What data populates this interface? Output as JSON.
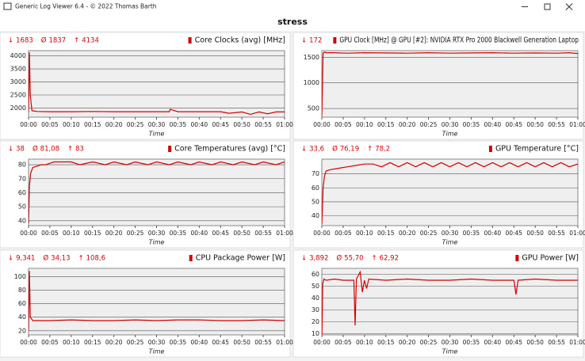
{
  "window_title": "Generic Log Viewer 6.4 - © 2022 Thomas Barth",
  "page_title": "stress",
  "stat_symbols": [
    "↓",
    "Ø",
    "↑"
  ],
  "chart_data": [
    {
      "type": "line",
      "title": "Core Clocks (avg) [MHz]",
      "x_label": "Time",
      "color": "#d40000",
      "stats": [
        1683,
        1837,
        4134
      ],
      "xlim": [
        0,
        60
      ],
      "xticks": [
        {
          "value": 0,
          "label": "00:00"
        },
        {
          "value": 5,
          "label": "00:05"
        },
        {
          "value": 10,
          "label": "00:10"
        },
        {
          "value": 15,
          "label": "00:15"
        },
        {
          "value": 20,
          "label": "00:20"
        },
        {
          "value": 25,
          "label": "00:25"
        },
        {
          "value": 30,
          "label": "00:30"
        },
        {
          "value": 35,
          "label": "00:35"
        },
        {
          "value": 40,
          "label": "00:40"
        },
        {
          "value": 45,
          "label": "00:45"
        },
        {
          "value": 50,
          "label": "00:50"
        },
        {
          "value": 55,
          "label": "00:55"
        },
        {
          "value": 60,
          "label": "01:00"
        }
      ],
      "ylim": [
        1650,
        4200
      ],
      "yticks": [
        2000,
        2500,
        3000,
        3500,
        4000
      ],
      "x": [
        0,
        0.2,
        0.4,
        0.8,
        2,
        5,
        10,
        15,
        20,
        25,
        30,
        33,
        33.2,
        35,
        40,
        45,
        47,
        50,
        52,
        54,
        56,
        58,
        60
      ],
      "values": [
        1837,
        4134,
        2500,
        1900,
        1870,
        1860,
        1860,
        1870,
        1860,
        1860,
        1860,
        1860,
        1950,
        1860,
        1860,
        1860,
        1800,
        1850,
        1760,
        1850,
        1780,
        1850,
        1850
      ]
    },
    {
      "type": "line",
      "title": "GPU Clock [MHz] @ GPU [#2]: NVIDIA RTX Pro 2000 Blackwell Generation Laptop",
      "x_label": "Time",
      "color": "#d40000",
      "stats": [
        172
      ],
      "xlim": [
        0,
        60
      ],
      "xticks": [
        {
          "value": 0,
          "label": "00:00"
        },
        {
          "value": 5,
          "label": "00:05"
        },
        {
          "value": 10,
          "label": "00:10"
        },
        {
          "value": 15,
          "label": "00:15"
        },
        {
          "value": 20,
          "label": "00:20"
        },
        {
          "value": 25,
          "label": "00:25"
        },
        {
          "value": 30,
          "label": "00:30"
        },
        {
          "value": 35,
          "label": "00:35"
        },
        {
          "value": 40,
          "label": "00:40"
        },
        {
          "value": 45,
          "label": "00:45"
        },
        {
          "value": 50,
          "label": "00:50"
        },
        {
          "value": 55,
          "label": "00:55"
        },
        {
          "value": 60,
          "label": "01:00"
        }
      ],
      "ylim": [
        330,
        1630
      ],
      "yticks": [
        500,
        1000,
        1500
      ],
      "x": [
        0,
        0.3,
        0.6,
        1,
        3,
        6,
        10,
        15,
        20,
        25,
        30,
        35,
        40,
        45,
        50,
        55,
        58,
        60
      ],
      "values": [
        350,
        1580,
        1600,
        1590,
        1590,
        1580,
        1590,
        1585,
        1580,
        1590,
        1580,
        1585,
        1590,
        1580,
        1585,
        1580,
        1590,
        1575
      ]
    },
    {
      "type": "line",
      "title": "Core Temperatures (avg) [°C]",
      "x_label": "Time",
      "color": "#d40000",
      "stats": [
        38,
        {
          "value": 81.08,
          "label": "81,08"
        },
        83
      ],
      "xlim": [
        0,
        60
      ],
      "xticks": [
        {
          "value": 0,
          "label": "00:00"
        },
        {
          "value": 5,
          "label": "00:05"
        },
        {
          "value": 10,
          "label": "00:10"
        },
        {
          "value": 15,
          "label": "00:15"
        },
        {
          "value": 20,
          "label": "00:20"
        },
        {
          "value": 25,
          "label": "00:25"
        },
        {
          "value": 30,
          "label": "00:30"
        },
        {
          "value": 35,
          "label": "00:35"
        },
        {
          "value": 40,
          "label": "00:40"
        },
        {
          "value": 45,
          "label": "00:45"
        },
        {
          "value": 50,
          "label": "00:50"
        },
        {
          "value": 55,
          "label": "00:55"
        },
        {
          "value": 60,
          "label": "01:00"
        }
      ],
      "ylim": [
        36.5,
        84
      ],
      "yticks": [
        40,
        50,
        60,
        70,
        80
      ],
      "x": [
        0,
        0.2,
        0.5,
        1,
        2,
        3,
        4,
        5,
        6,
        8,
        10,
        12,
        15,
        18,
        20,
        23,
        25,
        28,
        30,
        33,
        35,
        38,
        40,
        43,
        45,
        48,
        50,
        53,
        55,
        58,
        60
      ],
      "values": [
        38,
        65,
        74,
        78,
        79,
        80,
        80,
        81,
        82,
        82,
        82,
        80,
        82,
        80,
        82,
        80,
        82,
        80,
        82,
        80,
        82,
        80,
        82,
        80,
        82,
        80,
        82,
        80,
        82,
        80,
        82
      ]
    },
    {
      "type": "line",
      "title": "GPU Temperature [°C]",
      "x_label": "Time",
      "color": "#d40000",
      "stats": [
        {
          "value": 33.6,
          "label": "33,6"
        },
        {
          "value": 76.19,
          "label": "76,19"
        },
        {
          "value": 78.2,
          "label": "78,2"
        }
      ],
      "xlim": [
        0,
        60
      ],
      "xticks": [
        {
          "value": 0,
          "label": "00:00"
        },
        {
          "value": 5,
          "label": "00:05"
        },
        {
          "value": 10,
          "label": "00:10"
        },
        {
          "value": 15,
          "label": "00:15"
        },
        {
          "value": 20,
          "label": "00:20"
        },
        {
          "value": 25,
          "label": "00:25"
        },
        {
          "value": 30,
          "label": "00:30"
        },
        {
          "value": 35,
          "label": "00:35"
        },
        {
          "value": 40,
          "label": "00:40"
        },
        {
          "value": 45,
          "label": "00:45"
        },
        {
          "value": 50,
          "label": "00:50"
        },
        {
          "value": 55,
          "label": "00:55"
        },
        {
          "value": 60,
          "label": "01:00"
        }
      ],
      "ylim": [
        33,
        80.5
      ],
      "yticks": [
        40,
        50,
        60,
        70
      ],
      "x": [
        0,
        0.3,
        0.6,
        1,
        2,
        4,
        6,
        8,
        10,
        12,
        14,
        16,
        18,
        20,
        22,
        24,
        26,
        28,
        30,
        32,
        34,
        36,
        38,
        40,
        42,
        44,
        46,
        48,
        50,
        52,
        54,
        56,
        58,
        60
      ],
      "values": [
        34,
        60,
        68,
        72,
        73,
        74,
        75,
        76,
        77,
        77,
        75,
        78,
        75,
        78,
        75,
        78,
        75,
        78,
        75,
        78,
        75,
        78,
        75,
        78,
        75,
        78,
        75,
        78,
        75,
        78,
        75,
        78,
        75,
        77
      ]
    },
    {
      "type": "line",
      "title": "CPU Package Power [W]",
      "x_label": "Time",
      "color": "#d40000",
      "stats": [
        {
          "value": 9.341,
          "label": "9,341"
        },
        {
          "value": 34.13,
          "label": "34,13"
        },
        {
          "value": 108.6,
          "label": "108,6"
        }
      ],
      "xlim": [
        0,
        60
      ],
      "xticks": [
        {
          "value": 0,
          "label": "00:00"
        },
        {
          "value": 5,
          "label": "00:05"
        },
        {
          "value": 10,
          "label": "00:10"
        },
        {
          "value": 15,
          "label": "00:15"
        },
        {
          "value": 20,
          "label": "00:20"
        },
        {
          "value": 25,
          "label": "00:25"
        },
        {
          "value": 30,
          "label": "00:30"
        },
        {
          "value": 35,
          "label": "00:35"
        },
        {
          "value": 40,
          "label": "00:40"
        },
        {
          "value": 45,
          "label": "00:45"
        },
        {
          "value": 50,
          "label": "00:50"
        },
        {
          "value": 55,
          "label": "00:55"
        },
        {
          "value": 60,
          "label": "01:00"
        }
      ],
      "ylim": [
        14,
        112
      ],
      "yticks": [
        20,
        40,
        60,
        80,
        100
      ],
      "x": [
        0,
        0.2,
        0.4,
        1,
        5,
        10,
        15,
        20,
        25,
        30,
        35,
        40,
        45,
        50,
        55,
        60
      ],
      "values": [
        20,
        108,
        40,
        35,
        35,
        36,
        35,
        35,
        36,
        35,
        36,
        36,
        35,
        35,
        36,
        35
      ]
    },
    {
      "type": "line",
      "title": "GPU Power [W]",
      "x_label": "Time",
      "color": "#d40000",
      "stats": [
        {
          "value": 3.892,
          "label": "3,892"
        },
        {
          "value": 55.7,
          "label": "55,70"
        },
        {
          "value": 62.92,
          "label": "62,92"
        }
      ],
      "xlim": [
        0,
        60
      ],
      "xticks": [
        {
          "value": 0,
          "label": "00:00"
        },
        {
          "value": 5,
          "label": "00:05"
        },
        {
          "value": 10,
          "label": "00:10"
        },
        {
          "value": 15,
          "label": "00:15"
        },
        {
          "value": 20,
          "label": "00:20"
        },
        {
          "value": 25,
          "label": "00:25"
        },
        {
          "value": 30,
          "label": "00:30"
        },
        {
          "value": 35,
          "label": "00:35"
        },
        {
          "value": 40,
          "label": "00:40"
        },
        {
          "value": 45,
          "label": "00:45"
        },
        {
          "value": 50,
          "label": "00:50"
        },
        {
          "value": 55,
          "label": "00:55"
        },
        {
          "value": 60,
          "label": "01:00"
        }
      ],
      "ylim": [
        9,
        65
      ],
      "yticks": [
        10,
        20,
        30,
        40,
        50,
        60
      ],
      "x": [
        0,
        0.2,
        0.5,
        1,
        3,
        5,
        7.5,
        7.8,
        8.1,
        9,
        9.5,
        10,
        10.5,
        11,
        15,
        20,
        25,
        30,
        35,
        40,
        45,
        45.5,
        46,
        50,
        55,
        60
      ],
      "values": [
        4,
        52,
        56,
        55,
        56,
        55,
        55,
        17,
        56,
        62,
        45,
        55,
        48,
        56,
        55,
        56,
        55,
        55,
        56,
        55,
        55,
        43,
        55,
        56,
        55,
        55
      ]
    }
  ]
}
